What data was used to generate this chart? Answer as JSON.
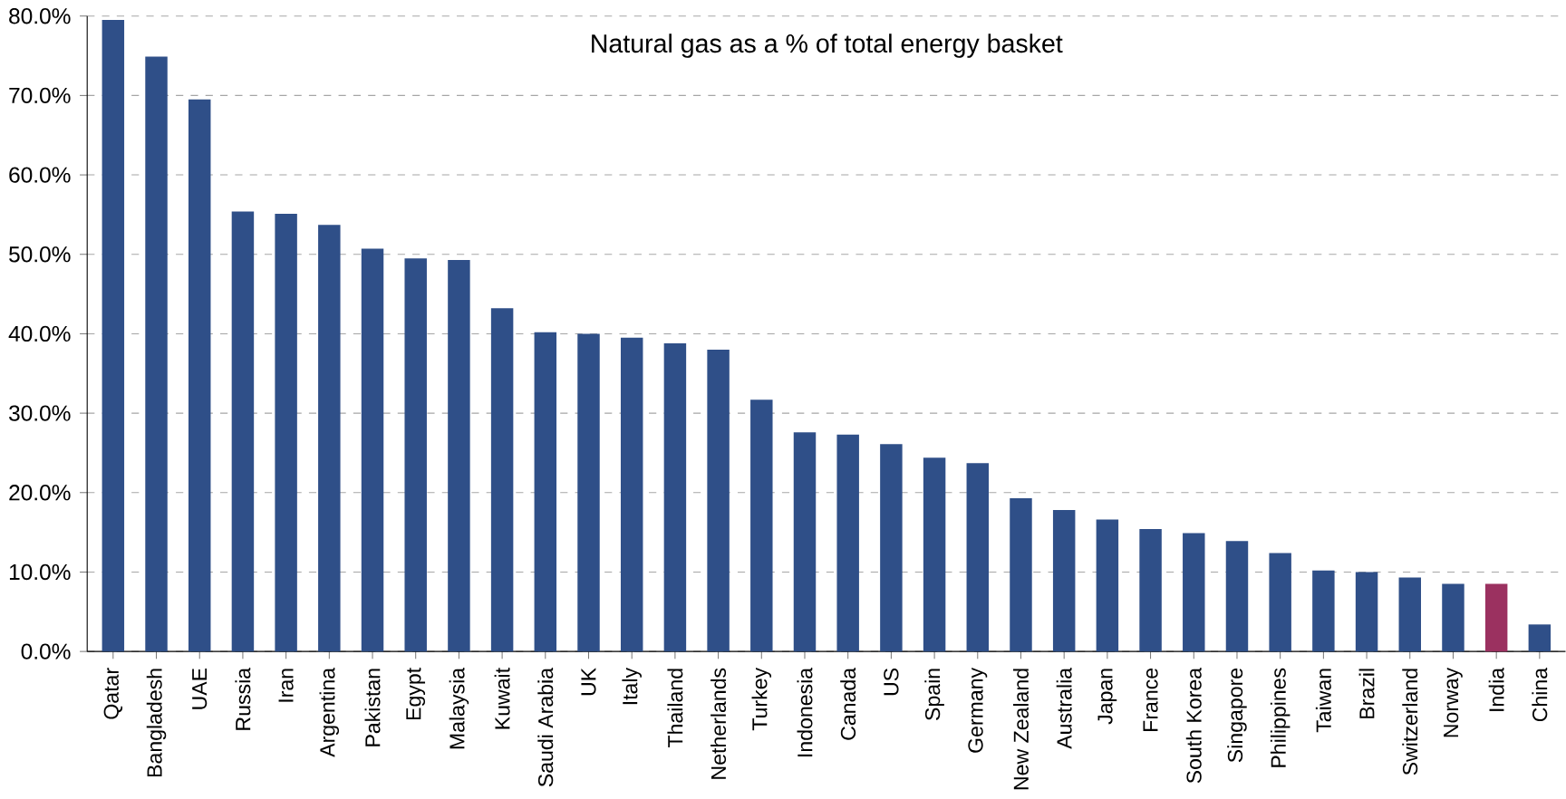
{
  "chart_data": {
    "type": "bar",
    "title": "Natural gas as a % of total energy basket",
    "categories": [
      "Qatar",
      "Bangladesh",
      "UAE",
      "Russia",
      "Iran",
      "Argentina",
      "Pakistan",
      "Egypt",
      "Malaysia",
      "Kuwait",
      "Saudi Arabia",
      "UK",
      "Italy",
      "Thailand",
      "Netherlands",
      "Turkey",
      "Indonesia",
      "Canada",
      "US",
      "Spain",
      "Germany",
      "New Zealand",
      "Australia",
      "Japan",
      "France",
      "South Korea",
      "Singapore",
      "Philippines",
      "Taiwan",
      "Brazil",
      "Switzerland",
      "Norway",
      "India",
      "China"
    ],
    "values": [
      79.5,
      74.9,
      69.5,
      55.4,
      55.1,
      53.7,
      50.7,
      49.5,
      49.3,
      43.2,
      40.2,
      40.0,
      39.5,
      38.8,
      38.0,
      31.7,
      27.6,
      27.3,
      26.1,
      24.4,
      23.7,
      19.3,
      17.8,
      16.6,
      15.4,
      14.9,
      13.9,
      12.4,
      10.2,
      10.0,
      9.3,
      8.5,
      8.5,
      3.4
    ],
    "colors": [
      "#2f4f88",
      "#2f4f88",
      "#2f4f88",
      "#2f4f88",
      "#2f4f88",
      "#2f4f88",
      "#2f4f88",
      "#2f4f88",
      "#2f4f88",
      "#2f4f88",
      "#2f4f88",
      "#2f4f88",
      "#2f4f88",
      "#2f4f88",
      "#2f4f88",
      "#2f4f88",
      "#2f4f88",
      "#2f4f88",
      "#2f4f88",
      "#2f4f88",
      "#2f4f88",
      "#2f4f88",
      "#2f4f88",
      "#2f4f88",
      "#2f4f88",
      "#2f4f88",
      "#2f4f88",
      "#2f4f88",
      "#2f4f88",
      "#2f4f88",
      "#2f4f88",
      "#2f4f88",
      "#9b3160",
      "#2f4f88"
    ],
    "ylim": [
      0,
      80
    ],
    "yticks": [
      {
        "value": 0,
        "label": "0.0%"
      },
      {
        "value": 10,
        "label": "10.0%"
      },
      {
        "value": 20,
        "label": "20.0%"
      },
      {
        "value": 30,
        "label": "30.0%"
      },
      {
        "value": 40,
        "label": "40.0%"
      },
      {
        "value": 50,
        "label": "50.0%"
      },
      {
        "value": 60,
        "label": "60.0%"
      },
      {
        "value": 70,
        "label": "70.0%"
      },
      {
        "value": 80,
        "label": "80.0%"
      }
    ],
    "grid": "y"
  }
}
